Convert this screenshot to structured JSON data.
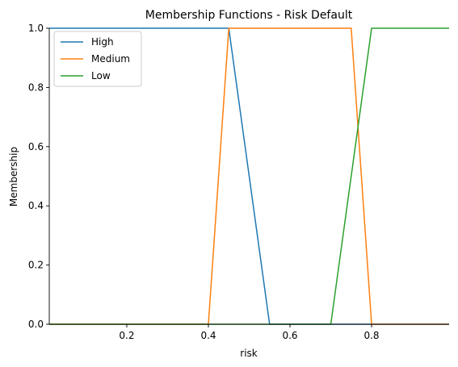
{
  "chart_data": {
    "type": "line",
    "title": "Membership Functions - Risk Default",
    "xlabel": "risk",
    "ylabel": "Membership",
    "xlim": [
      0.01,
      0.99
    ],
    "ylim": [
      0.0,
      1.0
    ],
    "xticks": [
      0.2,
      0.4,
      0.6,
      0.8
    ],
    "xtick_labels": [
      "0.2",
      "0.4",
      "0.6",
      "0.8"
    ],
    "yticks": [
      0.0,
      0.2,
      0.4,
      0.6,
      0.8,
      1.0
    ],
    "ytick_labels": [
      "0.0",
      "0.2",
      "0.4",
      "0.6",
      "0.8",
      "1.0"
    ],
    "grid": false,
    "legend_position": "top-left",
    "series": [
      {
        "name": "High",
        "color": "#1f77b4",
        "x": [
          0.01,
          0.45,
          0.55,
          0.99
        ],
        "y": [
          1,
          1,
          0,
          0
        ]
      },
      {
        "name": "Medium",
        "color": "#ff7f0e",
        "x": [
          0.01,
          0.4,
          0.45,
          0.75,
          0.8,
          0.99
        ],
        "y": [
          0,
          0,
          1,
          1,
          0,
          0
        ]
      },
      {
        "name": "Low",
        "color": "#2ca02c",
        "x": [
          0.01,
          0.7,
          0.8,
          0.99
        ],
        "y": [
          0,
          0,
          1,
          1
        ]
      }
    ]
  }
}
